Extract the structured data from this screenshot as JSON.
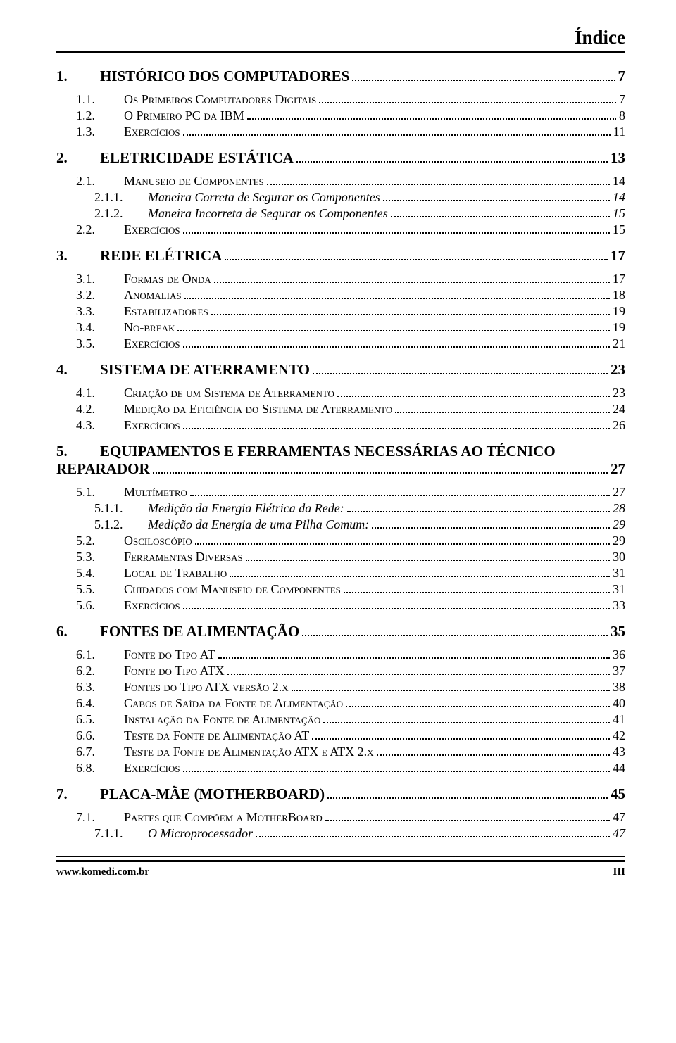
{
  "header_title": "Índice",
  "footer_left": "www.komedi.com.br",
  "footer_right": "III",
  "entries": [
    {
      "level": 0,
      "num": "1.",
      "label": "HISTÓRICO DOS COMPUTADORES",
      "page": "7"
    },
    {
      "level": 1,
      "num": "1.1.",
      "label": "Os Primeiros Computadores Digitais",
      "page": "7",
      "gap": true
    },
    {
      "level": 1,
      "num": "1.2.",
      "label": "O Primeiro PC da IBM",
      "page": "8"
    },
    {
      "level": 1,
      "num": "1.3.",
      "label": "Exercícios",
      "page": "11"
    },
    {
      "level": 0,
      "num": "2.",
      "label": "ELETRICIDADE ESTÁTICA",
      "page": "13"
    },
    {
      "level": 1,
      "num": "2.1.",
      "label": "Manuseio de Componentes",
      "page": "14",
      "gap": true
    },
    {
      "level": 2,
      "num": "2.1.1.",
      "label": "Maneira Correta de Segurar os Componentes",
      "page": "14"
    },
    {
      "level": 2,
      "num": "2.1.2.",
      "label": "Maneira Incorreta de Segurar os Componentes",
      "page": "15"
    },
    {
      "level": 1,
      "num": "2.2.",
      "label": "Exercícios",
      "page": "15"
    },
    {
      "level": 0,
      "num": "3.",
      "label": "REDE ELÉTRICA",
      "page": "17"
    },
    {
      "level": 1,
      "num": "3.1.",
      "label": "Formas de Onda",
      "page": "17",
      "gap": true
    },
    {
      "level": 1,
      "num": "3.2.",
      "label": "Anomalias",
      "page": "18"
    },
    {
      "level": 1,
      "num": "3.3.",
      "label": "Estabilizadores",
      "page": "19"
    },
    {
      "level": 1,
      "num": "3.4.",
      "label": "No-break",
      "page": "19"
    },
    {
      "level": 1,
      "num": "3.5.",
      "label": "Exercícios",
      "page": "21"
    },
    {
      "level": 0,
      "num": "4.",
      "label": "SISTEMA DE ATERRAMENTO",
      "page": "23"
    },
    {
      "level": 1,
      "num": "4.1.",
      "label": "Criação de um Sistema de Aterramento",
      "page": "23",
      "gap": true
    },
    {
      "level": 1,
      "num": "4.2.",
      "label": "Medição da Eficiência do Sistema de Aterramento",
      "page": "24"
    },
    {
      "level": 1,
      "num": "4.3.",
      "label": "Exercícios",
      "page": "26"
    },
    {
      "level": 0,
      "num": "5.",
      "label_line1": "EQUIPAMENTOS E FERRAMENTAS NECESSÁRIAS AO TÉCNICO",
      "label_line2": "REPARADOR",
      "page": "27",
      "multiline": true
    },
    {
      "level": 1,
      "num": "5.1.",
      "label": "Multímetro",
      "page": "27",
      "gap": true
    },
    {
      "level": 2,
      "num": "5.1.1.",
      "label": "Medição da Energia Elétrica da Rede:",
      "page": "28"
    },
    {
      "level": 2,
      "num": "5.1.2.",
      "label": "Medição da Energia de uma Pilha Comum:",
      "page": "29"
    },
    {
      "level": 1,
      "num": "5.2.",
      "label": "Osciloscópio",
      "page": "29"
    },
    {
      "level": 1,
      "num": "5.3.",
      "label": "Ferramentas Diversas",
      "page": "30"
    },
    {
      "level": 1,
      "num": "5.4.",
      "label": "Local de Trabalho",
      "page": "31"
    },
    {
      "level": 1,
      "num": "5.5.",
      "label": "Cuidados com Manuseio de Componentes",
      "page": "31"
    },
    {
      "level": 1,
      "num": "5.6.",
      "label": "Exercícios",
      "page": "33"
    },
    {
      "level": 0,
      "num": "6.",
      "label": "FONTES DE ALIMENTAÇÃO",
      "page": "35"
    },
    {
      "level": 1,
      "num": "6.1.",
      "label": "Fonte do Tipo AT",
      "page": "36",
      "gap": true
    },
    {
      "level": 1,
      "num": "6.2.",
      "label": "Fonte do Tipo ATX",
      "page": "37"
    },
    {
      "level": 1,
      "num": "6.3.",
      "label": "Fontes do Tipo ATX versão 2.x",
      "page": "38"
    },
    {
      "level": 1,
      "num": "6.4.",
      "label": "Cabos de Saída da Fonte de Alimentação",
      "page": "40"
    },
    {
      "level": 1,
      "num": "6.5.",
      "label": "Instalação da Fonte de Alimentação",
      "page": "41"
    },
    {
      "level": 1,
      "num": "6.6.",
      "label": "Teste da Fonte de Alimentação AT",
      "page": "42"
    },
    {
      "level": 1,
      "num": "6.7.",
      "label": "Teste da Fonte de Alimentação ATX e ATX 2.x",
      "page": "43"
    },
    {
      "level": 1,
      "num": "6.8.",
      "label": "Exercícios",
      "page": "44"
    },
    {
      "level": 0,
      "num": "7.",
      "label": "PLACA-MÃE (MOTHERBOARD)",
      "page": "45"
    },
    {
      "level": 1,
      "num": "7.1.",
      "label": "Partes que Compõem a MotherBoard",
      "page": "47",
      "gap": true
    },
    {
      "level": 2,
      "num": "7.1.1.",
      "label": "O Microprocessador",
      "page": "47"
    }
  ]
}
